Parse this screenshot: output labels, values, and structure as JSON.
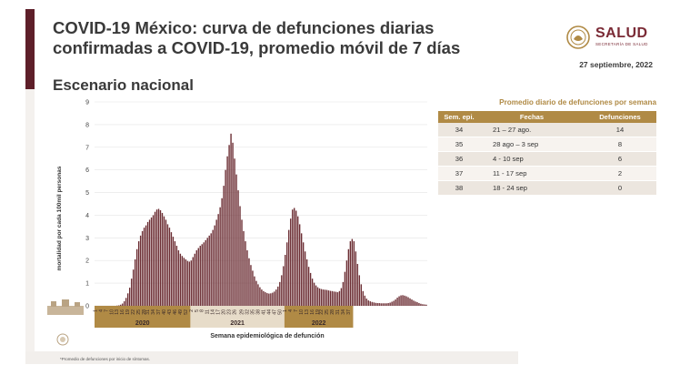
{
  "header": {
    "title": "COVID-19 México: curva de defunciones diarias confirmadas a COVID-19, promedio móvil de 7 días",
    "subtitle": "Escenario nacional",
    "date": "27 septiembre, 2022",
    "logo_text": "SALUD",
    "logo_subtext": "SECRETARÍA DE SALUD"
  },
  "colors": {
    "accent": "#5e1f29",
    "bars": "#6b2d33",
    "gold": "#b08a45",
    "year_2021_band": "#e7dcc9"
  },
  "chart_data": {
    "type": "bar",
    "ylabel": "mortalidad por cada 100mil personas",
    "xlabel": "Semana epidemiológica de defunción",
    "ylim": [
      0,
      9
    ],
    "yticks": [
      0,
      1,
      2,
      3,
      4,
      5,
      6,
      7,
      8,
      9
    ],
    "grid": true,
    "values": [
      0.0,
      0.0,
      0.0,
      0.0,
      0.0,
      0.0,
      0.0,
      0.0,
      0.0,
      0.0,
      0.0,
      0.0,
      0.01,
      0.02,
      0.05,
      0.1,
      0.2,
      0.35,
      0.55,
      0.8,
      1.2,
      1.6,
      2.05,
      2.5,
      2.85,
      3.1,
      3.3,
      3.45,
      3.55,
      3.7,
      3.8,
      3.9,
      4.0,
      4.15,
      4.25,
      4.28,
      4.22,
      4.1,
      3.95,
      3.8,
      3.6,
      3.45,
      3.25,
      3.05,
      2.85,
      2.65,
      2.45,
      2.3,
      2.2,
      2.12,
      2.05,
      1.98,
      1.95,
      2.0,
      2.15,
      2.3,
      2.45,
      2.55,
      2.65,
      2.72,
      2.8,
      2.9,
      3.0,
      3.1,
      3.2,
      3.35,
      3.55,
      3.8,
      4.05,
      4.35,
      4.75,
      5.3,
      6.0,
      6.6,
      7.1,
      7.6,
      7.2,
      6.5,
      5.8,
      5.1,
      4.4,
      3.8,
      3.3,
      2.85,
      2.45,
      2.1,
      1.8,
      1.55,
      1.3,
      1.1,
      0.95,
      0.82,
      0.72,
      0.65,
      0.6,
      0.56,
      0.54,
      0.55,
      0.58,
      0.63,
      0.72,
      0.85,
      1.05,
      1.35,
      1.75,
      2.25,
      2.8,
      3.35,
      3.85,
      4.25,
      4.32,
      4.2,
      3.95,
      3.6,
      3.2,
      2.8,
      2.4,
      2.05,
      1.72,
      1.45,
      1.2,
      1.02,
      0.9,
      0.82,
      0.77,
      0.74,
      0.72,
      0.71,
      0.7,
      0.68,
      0.66,
      0.65,
      0.63,
      0.62,
      0.6,
      0.65,
      0.78,
      1.05,
      1.5,
      2.0,
      2.5,
      2.85,
      2.95,
      2.85,
      2.4,
      1.85,
      1.35,
      0.95,
      0.65,
      0.45,
      0.32,
      0.24,
      0.2,
      0.17,
      0.15,
      0.13,
      0.12,
      0.12,
      0.11,
      0.11,
      0.11,
      0.11,
      0.12,
      0.14,
      0.18,
      0.22,
      0.28,
      0.36,
      0.42,
      0.46,
      0.47,
      0.45,
      0.42,
      0.38,
      0.33,
      0.28,
      0.23,
      0.19,
      0.16,
      0.12,
      0.09,
      0.07,
      0.06,
      0.05
    ],
    "years": [
      {
        "label": "2020",
        "start": 0,
        "end": 52
      },
      {
        "label": "2021",
        "start": 53,
        "end": 104
      },
      {
        "label": "2022",
        "start": 105,
        "end": 142
      }
    ],
    "week_ticks": {
      "2020": [
        "1",
        "4",
        "7",
        "10",
        "13",
        "16",
        "19",
        "22",
        "25",
        "28",
        "31",
        "34",
        "37",
        "40",
        "43",
        "46",
        "49",
        "52"
      ],
      "2021": [
        "2",
        "5",
        "8",
        "11",
        "14",
        "17",
        "20",
        "23",
        "26",
        "29",
        "32",
        "35",
        "38",
        "41",
        "44",
        "47",
        "50"
      ],
      "2022": [
        "1",
        "4",
        "7",
        "10",
        "13",
        "16",
        "19",
        "22",
        "25",
        "28",
        "31",
        "34",
        "37"
      ]
    }
  },
  "weekly_table": {
    "title": "Promedio diario de defunciones por semana",
    "headers": [
      "Sem. epi.",
      "Fechas",
      "Defunciones"
    ],
    "rows": [
      [
        "34",
        "21 – 27 ago.",
        "14"
      ],
      [
        "35",
        "28 ago – 3 sep",
        "8"
      ],
      [
        "36",
        "4 - 10 sep",
        "6"
      ],
      [
        "37",
        "11 - 17 sep",
        "2"
      ],
      [
        "38",
        "18 - 24 sep",
        "0"
      ]
    ]
  },
  "footnote": "*Promedio de defunciones por inicio de síntomas."
}
